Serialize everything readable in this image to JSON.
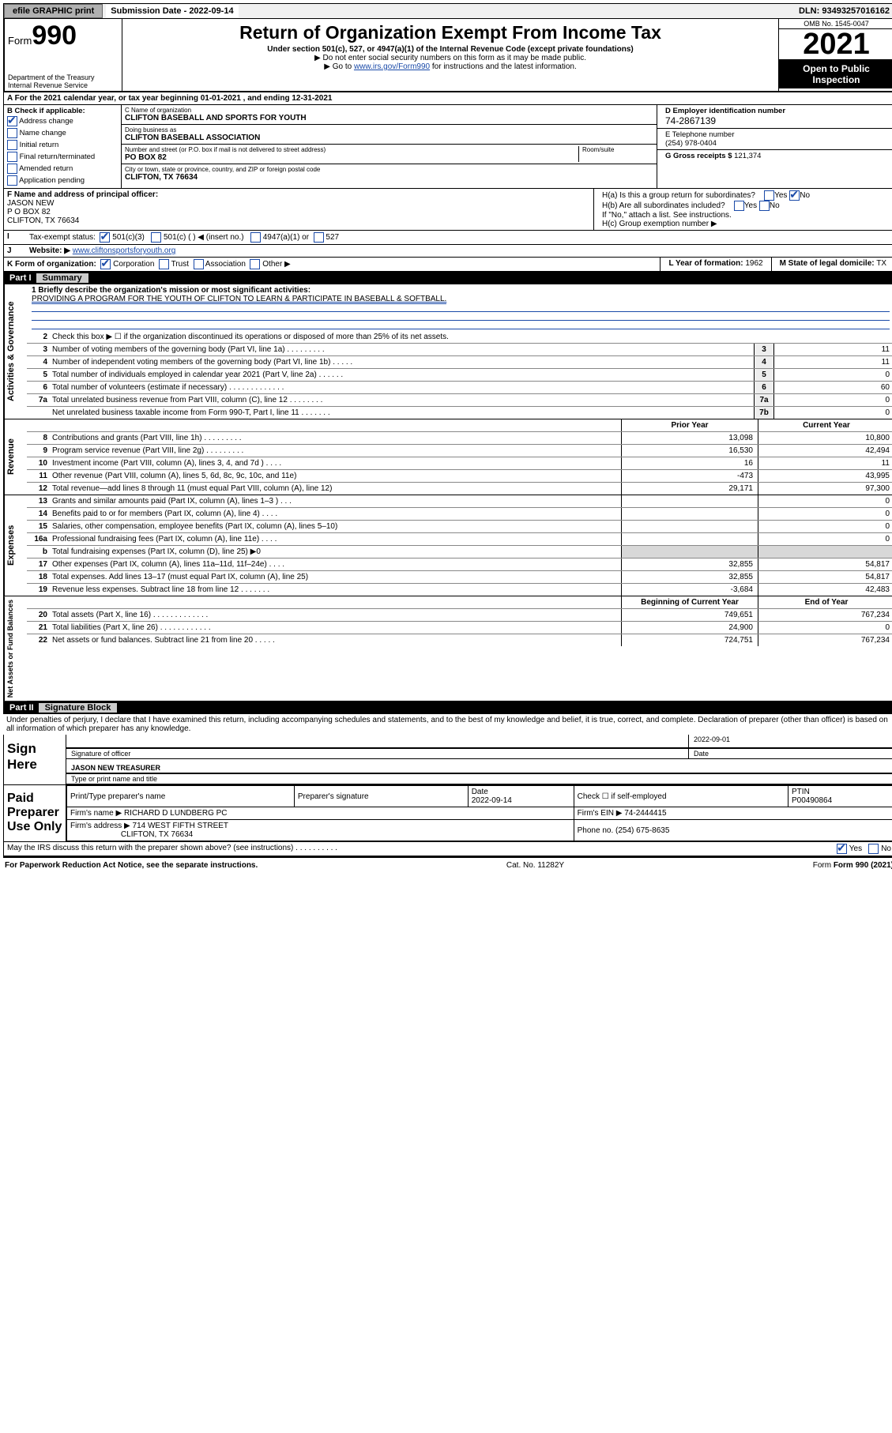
{
  "topbar": {
    "efile": "efile GRAPHIC print",
    "subdate_lbl": "Submission Date - 2022-09-14",
    "dln": "DLN: 93493257016162"
  },
  "header": {
    "form_prefix": "Form",
    "form_num": "990",
    "dept": "Department of the Treasury",
    "irs": "Internal Revenue Service",
    "title": "Return of Organization Exempt From Income Tax",
    "subtitle": "Under section 501(c), 527, or 4947(a)(1) of the Internal Revenue Code (except private foundations)",
    "note1": "▶ Do not enter social security numbers on this form as it may be made public.",
    "note2_pre": "▶ Go to ",
    "note2_link": "www.irs.gov/Form990",
    "note2_post": " for instructions and the latest information.",
    "omb": "OMB No. 1545-0047",
    "year": "2021",
    "open": "Open to Public Inspection"
  },
  "lineA": "For the 2021 calendar year, or tax year beginning 01-01-2021    , and ending 12-31-2021",
  "boxB": {
    "hdr": "B Check if applicable:",
    "items": [
      "Address change",
      "Name change",
      "Initial return",
      "Final return/terminated",
      "Amended return",
      "Application pending"
    ],
    "checked_idx": 0
  },
  "boxC": {
    "name_lbl": "C Name of organization",
    "name": "CLIFTON BASEBALL AND SPORTS FOR YOUTH",
    "dba_lbl": "Doing business as",
    "dba": "CLIFTON BASEBALL ASSOCIATION",
    "addr_lbl": "Number and street (or P.O. box if mail is not delivered to street address)",
    "room_lbl": "Room/suite",
    "addr": "PO BOX 82",
    "city_lbl": "City or town, state or province, country, and ZIP or foreign postal code",
    "city": "CLIFTON, TX  76634"
  },
  "boxD": {
    "lbl": "D Employer identification number",
    "val": "74-2867139"
  },
  "boxE": {
    "lbl": "E Telephone number",
    "val": "(254) 978-0404"
  },
  "boxG": {
    "lbl": "G Gross receipts $",
    "val": "121,374"
  },
  "boxF": {
    "lbl": "F Name and address of principal officer:",
    "name": "JASON NEW",
    "addr1": "P O BOX 82",
    "addr2": "CLIFTON, TX  76634"
  },
  "boxH": {
    "a": "H(a)  Is this a group return for subordinates?",
    "b": "H(b)  Are all subordinates included?",
    "b_note": "If \"No,\" attach a list. See instructions.",
    "c": "H(c)  Group exemption number ▶",
    "yes": "Yes",
    "no": "No"
  },
  "boxI": {
    "lbl": "Tax-exempt status:",
    "opts": [
      "501(c)(3)",
      "501(c) (   ) ◀ (insert no.)",
      "4947(a)(1) or",
      "527"
    ]
  },
  "boxJ": {
    "lbl": "Website: ▶",
    "val": "www.cliftonsportsforyouth.org"
  },
  "boxK": {
    "lbl": "K Form of organization:",
    "opts": [
      "Corporation",
      "Trust",
      "Association",
      "Other ▶"
    ]
  },
  "boxL": {
    "lbl": "L Year of formation:",
    "val": "1962"
  },
  "boxM": {
    "lbl": "M State of legal domicile:",
    "val": "TX"
  },
  "part1": {
    "hdr_part": "Part I",
    "hdr_title": "Summary",
    "mission_lbl": "1   Briefly describe the organization's mission or most significant activities:",
    "mission": "PROVIDING A PROGRAM FOR THE YOUTH OF CLIFTON TO LEARN & PARTICIPATE IN BASEBALL & SOFTBALL.",
    "line2": "Check this box ▶ ☐  if the organization discontinued its operations or disposed of more than 25% of its net assets.",
    "gov_lines": [
      {
        "n": "3",
        "d": "Number of voting members of the governing body (Part VI, line 1a)  .   .   .   .   .   .   .   .   .",
        "nn": "3",
        "v": "11"
      },
      {
        "n": "4",
        "d": "Number of independent voting members of the governing body (Part VI, line 1b)  .   .   .   .   .",
        "nn": "4",
        "v": "11"
      },
      {
        "n": "5",
        "d": "Total number of individuals employed in calendar year 2021 (Part V, line 2a)  .   .   .   .   .   .",
        "nn": "5",
        "v": "0"
      },
      {
        "n": "6",
        "d": "Total number of volunteers (estimate if necessary)  .   .   .   .   .   .   .   .   .   .   .   .   .",
        "nn": "6",
        "v": "60"
      },
      {
        "n": "7a",
        "d": "Total unrelated business revenue from Part VIII, column (C), line 12  .   .   .   .   .   .   .   .",
        "nn": "7a",
        "v": "0"
      },
      {
        "n": "",
        "d": "Net unrelated business taxable income from Form 990-T, Part I, line 11  .   .   .   .   .   .   .",
        "nn": "7b",
        "v": "0"
      }
    ],
    "col_hdr_prior": "Prior Year",
    "col_hdr_curr": "Current Year",
    "rev_lines": [
      {
        "n": "8",
        "d": "Contributions and grants (Part VIII, line 1h)  .   .   .   .   .   .   .   .   .",
        "p": "13,098",
        "c": "10,800"
      },
      {
        "n": "9",
        "d": "Program service revenue (Part VIII, line 2g)   .   .   .   .   .   .   .   .   .",
        "p": "16,530",
        "c": "42,494"
      },
      {
        "n": "10",
        "d": "Investment income (Part VIII, column (A), lines 3, 4, and 7d )  .   .   .   .",
        "p": "16",
        "c": "11"
      },
      {
        "n": "11",
        "d": "Other revenue (Part VIII, column (A), lines 5, 6d, 8c, 9c, 10c, and 11e)",
        "p": "-473",
        "c": "43,995"
      },
      {
        "n": "12",
        "d": "Total revenue—add lines 8 through 11 (must equal Part VIII, column (A), line 12)",
        "p": "29,171",
        "c": "97,300"
      }
    ],
    "exp_lines": [
      {
        "n": "13",
        "d": "Grants and similar amounts paid (Part IX, column (A), lines 1–3 )  .   .   .",
        "p": "",
        "c": "0"
      },
      {
        "n": "14",
        "d": "Benefits paid to or for members (Part IX, column (A), line 4)  .   .   .   .",
        "p": "",
        "c": "0"
      },
      {
        "n": "15",
        "d": "Salaries, other compensation, employee benefits (Part IX, column (A), lines 5–10)",
        "p": "",
        "c": "0"
      },
      {
        "n": "16a",
        "d": "Professional fundraising fees (Part IX, column (A), line 11e)  .   .   .   .",
        "p": "",
        "c": "0"
      },
      {
        "n": "b",
        "d": "Total fundraising expenses (Part IX, column (D), line 25) ▶0",
        "p": "shade",
        "c": "shade"
      },
      {
        "n": "17",
        "d": "Other expenses (Part IX, column (A), lines 11a–11d, 11f–24e)  .   .   .   .",
        "p": "32,855",
        "c": "54,817"
      },
      {
        "n": "18",
        "d": "Total expenses. Add lines 13–17 (must equal Part IX, column (A), line 25)",
        "p": "32,855",
        "c": "54,817"
      },
      {
        "n": "19",
        "d": "Revenue less expenses. Subtract line 18 from line 12  .   .   .   .   .   .   .",
        "p": "-3,684",
        "c": "42,483"
      }
    ],
    "na_hdr_beg": "Beginning of Current Year",
    "na_hdr_end": "End of Year",
    "na_lines": [
      {
        "n": "20",
        "d": "Total assets (Part X, line 16)  .   .   .   .   .   .   .   .   .   .   .   .   .",
        "p": "749,651",
        "c": "767,234"
      },
      {
        "n": "21",
        "d": "Total liabilities (Part X, line 26)  .   .   .   .   .   .   .   .   .   .   .   .",
        "p": "24,900",
        "c": "0"
      },
      {
        "n": "22",
        "d": "Net assets or fund balances. Subtract line 21 from line 20  .   .   .   .   .",
        "p": "724,751",
        "c": "767,234"
      }
    ],
    "side_gov": "Activities & Governance",
    "side_rev": "Revenue",
    "side_exp": "Expenses",
    "side_na": "Net Assets or Fund Balances"
  },
  "part2": {
    "hdr_part": "Part II",
    "hdr_title": "Signature Block",
    "perjury": "Under penalties of perjury, I declare that I have examined this return, including accompanying schedules and statements, and to the best of my knowledge and belief, it is true, correct, and complete. Declaration of preparer (other than officer) is based on all information of which preparer has any knowledge.",
    "sign_here": "Sign Here",
    "sig_officer": "Signature of officer",
    "sig_date": "2022-09-01",
    "date_lbl": "Date",
    "officer_name": "JASON NEW TREASURER",
    "type_name": "Type or print name and title",
    "paid_prep": "Paid Preparer Use Only",
    "prep_hdrs": [
      "Print/Type preparer's name",
      "Preparer's signature",
      "Date",
      "Check ☐ if self-employed",
      "PTIN"
    ],
    "prep_date": "2022-09-14",
    "ptin": "P00490864",
    "firm_name_lbl": "Firm's name    ▶",
    "firm_name": "RICHARD D LUNDBERG PC",
    "firm_ein_lbl": "Firm's EIN ▶",
    "firm_ein": "74-2444415",
    "firm_addr_lbl": "Firm's address ▶",
    "firm_addr1": "714 WEST FIFTH STREET",
    "firm_addr2": "CLIFTON, TX  76634",
    "phone_lbl": "Phone no.",
    "phone": "(254) 675-8635",
    "may_irs": "May the IRS discuss this return with the preparer shown above? (see instructions)  .   .   .   .   .   .   .   .   .   .",
    "yes": "Yes",
    "no": "No"
  },
  "footer": {
    "pra": "For Paperwork Reduction Act Notice, see the separate instructions.",
    "cat": "Cat. No. 11282Y",
    "form": "Form 990 (2021)"
  }
}
